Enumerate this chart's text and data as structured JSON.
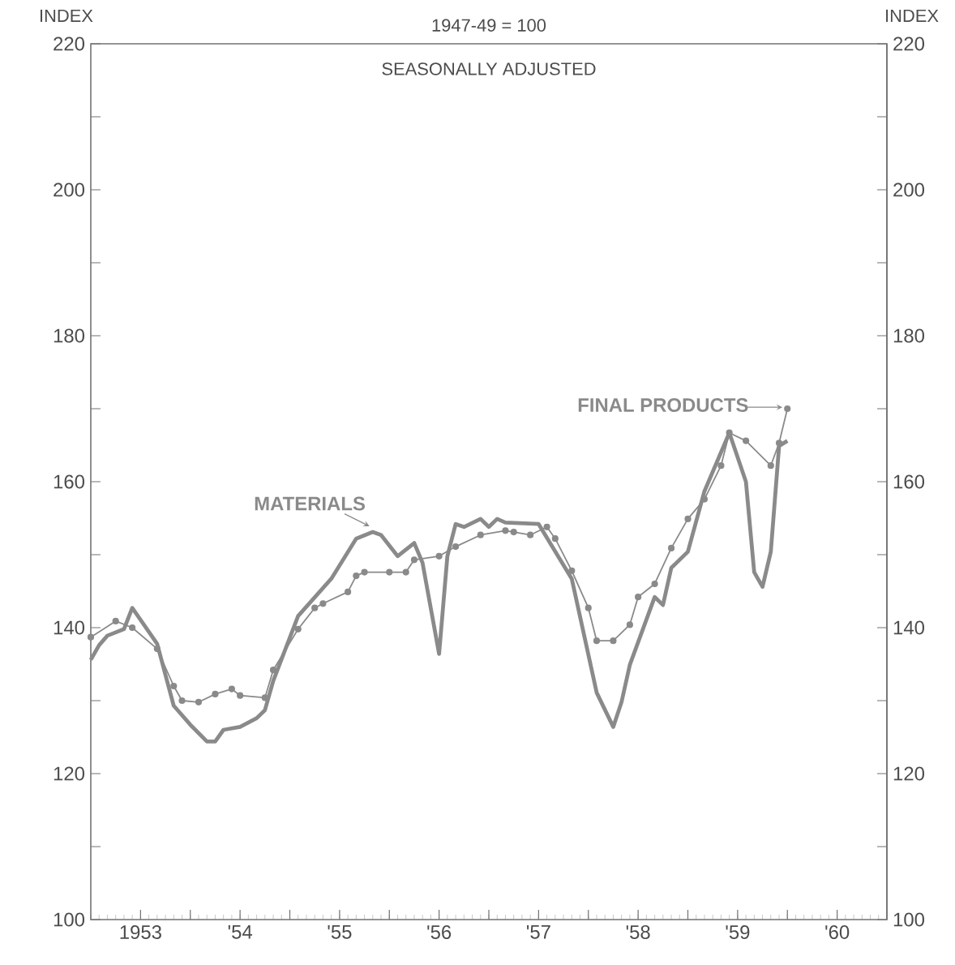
{
  "chart_data": {
    "type": "line",
    "title": "1947-49 = 100",
    "subtitle": "SEASONALLY ADJUSTED",
    "ylabel": "INDEX",
    "y2label": "INDEX",
    "xlim": [
      "1953-01",
      "1961-01"
    ],
    "ylim": [
      100,
      220
    ],
    "y2lim": [
      100,
      220
    ],
    "xticks": [
      {
        "value": "1953-07",
        "label": "1953"
      },
      {
        "value": "1954-01",
        "label": null
      },
      {
        "value": "1954-07",
        "label": "'54"
      },
      {
        "value": "1955-01",
        "label": null
      },
      {
        "value": "1955-07",
        "label": "'55"
      },
      {
        "value": "1956-01",
        "label": null
      },
      {
        "value": "1956-07",
        "label": "'56"
      },
      {
        "value": "1957-01",
        "label": null
      },
      {
        "value": "1957-07",
        "label": "'57"
      },
      {
        "value": "1958-01",
        "label": null
      },
      {
        "value": "1958-07",
        "label": "'58"
      },
      {
        "value": "1959-01",
        "label": null
      },
      {
        "value": "1959-07",
        "label": "'59"
      },
      {
        "value": "1960-01",
        "label": null
      },
      {
        "value": "1960-07",
        "label": "'60"
      }
    ],
    "yticks": [
      100,
      {
        "value": 110,
        "label": null
      },
      120,
      {
        "value": 130,
        "label": null
      },
      140,
      {
        "value": 150,
        "label": null
      },
      160,
      {
        "value": 170,
        "label": null
      },
      180,
      {
        "value": 190,
        "label": null
      },
      200,
      {
        "value": 210,
        "label": null
      },
      220
    ],
    "y2ticks": [
      100,
      {
        "value": 110,
        "label": null
      },
      120,
      {
        "value": 130,
        "label": null
      },
      140,
      {
        "value": 150,
        "label": null
      },
      160,
      {
        "value": 170,
        "label": null
      },
      180,
      {
        "value": 190,
        "label": null
      },
      200,
      {
        "value": 210,
        "label": null
      },
      220
    ],
    "series": [
      {
        "name": "MATERIALS",
        "color": "#8a8a8a",
        "marker": "none",
        "x": [
          "1953-01",
          "1953-02",
          "1953-03",
          "1953-05",
          "1953-06",
          "1953-09",
          "1953-11",
          "1954-01",
          "1954-03",
          "1954-04",
          "1954-05",
          "1954-07",
          "1954-09",
          "1954-10",
          "1954-11",
          "1955-02",
          "1955-06",
          "1955-09",
          "1955-11",
          "1955-12",
          "1956-02",
          "1956-04",
          "1956-05",
          "1956-07",
          "1956-08",
          "1956-09",
          "1956-10",
          "1956-12",
          "1957-01",
          "1957-02",
          "1957-03",
          "1957-07",
          "1957-11",
          "1958-02",
          "1958-04",
          "1958-05",
          "1958-06",
          "1958-09",
          "1958-10",
          "1958-11",
          "1959-01",
          "1959-03",
          "1959-06",
          "1959-08",
          "1959-09",
          "1959-10",
          "1959-11",
          "1959-12",
          "1960-01"
        ],
        "values": [
          135.6,
          137.6,
          138.9,
          139.8,
          142.7,
          137.8,
          129.3,
          126.7,
          124.4,
          124.4,
          126,
          126.4,
          127.6,
          128.7,
          132.7,
          141.6,
          146.7,
          152.2,
          153.1,
          152.7,
          149.8,
          151.6,
          148.9,
          136.4,
          149.8,
          154.2,
          153.8,
          154.9,
          153.8,
          154.9,
          154.4,
          154.2,
          146.7,
          131.1,
          126.4,
          129.8,
          134.9,
          144.2,
          143.1,
          148.2,
          150.4,
          158.7,
          166.7,
          160,
          147.6,
          145.6,
          150.4,
          164.9,
          165.6
        ]
      },
      {
        "name": "FINAL PRODUCTS",
        "color": "#8a8a8a",
        "marker": "circle",
        "x": [
          "1953-01",
          "1953-04",
          "1953-06",
          "1953-09",
          "1953-11",
          "1953-12",
          "1954-02",
          "1954-04",
          "1954-06",
          "1954-07",
          "1954-10",
          "1954-11",
          "1955-02",
          "1955-04",
          "1955-05",
          "1955-08",
          "1955-09",
          "1955-10",
          "1956-01",
          "1956-03",
          "1956-04",
          "1956-07",
          "1956-09",
          "1956-12",
          "1957-03",
          "1957-04",
          "1957-06",
          "1957-08",
          "1957-09",
          "1957-11",
          "1958-01",
          "1958-02",
          "1958-04",
          "1958-06",
          "1958-07",
          "1958-09",
          "1958-11",
          "1959-01",
          "1959-03",
          "1959-05",
          "1959-06",
          "1959-08",
          "1959-11",
          "1959-12",
          "1960-01"
        ],
        "values": [
          138.7,
          140.9,
          140,
          137.1,
          132,
          130,
          129.8,
          130.9,
          131.6,
          130.7,
          130.4,
          134.2,
          139.8,
          142.7,
          143.3,
          144.9,
          147.1,
          147.6,
          147.6,
          147.6,
          149.3,
          149.8,
          151.1,
          152.7,
          153.3,
          153.1,
          152.7,
          153.8,
          152.2,
          147.8,
          142.7,
          138.2,
          138.2,
          140.4,
          144.2,
          146,
          150.9,
          154.9,
          157.6,
          162.2,
          166.7,
          165.6,
          162.2,
          165.3,
          170
        ]
      }
    ]
  }
}
